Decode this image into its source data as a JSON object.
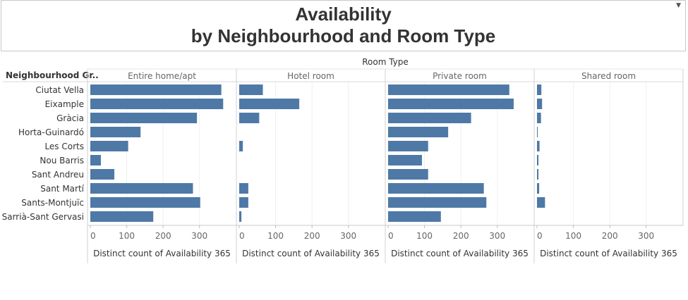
{
  "title_line1": "Availability",
  "title_line2": "by Neighbourhood and Room Type",
  "menu_icon": "dropdown-caret-icon",
  "chart_data": {
    "type": "bar",
    "orientation": "horizontal",
    "column_header": "Room Type",
    "row_header": "Neighbourhood Gr..",
    "categories": [
      "Ciutat Vella",
      "Eixample",
      "Gràcia",
      "Horta-Guinardó",
      "Les Corts",
      "Nou Barris",
      "Sant Andreu",
      "Sant Martí",
      "Sants-Montjuïc",
      "Sarrià-Sant Gervasi"
    ],
    "series": [
      {
        "name": "Entire home/apt",
        "values": [
          360,
          365,
          293,
          138,
          104,
          29,
          66,
          282,
          302,
          173
        ]
      },
      {
        "name": "Hotel room",
        "values": [
          65,
          165,
          55,
          0,
          10,
          0,
          0,
          25,
          25,
          6
        ]
      },
      {
        "name": "Private room",
        "values": [
          333,
          345,
          228,
          165,
          110,
          93,
          110,
          263,
          270,
          145
        ]
      },
      {
        "name": "Shared room",
        "values": [
          12,
          14,
          11,
          2,
          7,
          4,
          4,
          6,
          22,
          0
        ]
      }
    ],
    "xlabel": "Distinct count of Availability 365",
    "xticks": [
      0,
      100,
      200,
      300
    ],
    "xlim": [
      0,
      380
    ],
    "bar_color": "#4e79a7",
    "grid": true
  }
}
